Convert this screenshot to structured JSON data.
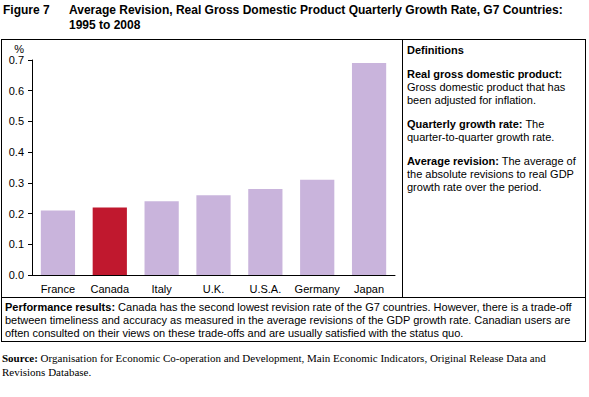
{
  "chart_data": {
    "type": "bar",
    "title": {
      "label": "Figure 7",
      "text": "Average Revision, Real Gross Domestic Product Quarterly Growth Rate, G7 Countries: 1995 to 2008"
    },
    "y_label": "%",
    "categories": [
      "France",
      "Canada",
      "Italy",
      "U.K.",
      "U.S.A.",
      "Germany",
      "Japan"
    ],
    "values": [
      0.21,
      0.22,
      0.24,
      0.26,
      0.28,
      0.31,
      0.69
    ],
    "colors": [
      "#c9b4dc",
      "#c0182e",
      "#c9b4dc",
      "#c9b4dc",
      "#c9b4dc",
      "#c9b4dc",
      "#c9b4dc"
    ],
    "ylim": [
      0,
      0.7
    ],
    "yticks": [
      {
        "value": 0,
        "label": "0.0"
      },
      {
        "value": 0.1,
        "label": "0.1"
      },
      {
        "value": 0.2,
        "label": "0.2"
      },
      {
        "value": 0.3,
        "label": "0.3"
      },
      {
        "value": 0.4,
        "label": "0.4"
      },
      {
        "value": 0.5,
        "label": "0.5"
      },
      {
        "value": 0.6,
        "label": "0.6"
      },
      {
        "value": 0.7,
        "label": "0.7"
      }
    ],
    "grid": false
  },
  "definitions": {
    "heading": "Definitions",
    "items": [
      {
        "term": "Real gross domestic product:",
        "text": "Gross domestic product that has been adjusted for inflation."
      },
      {
        "term": "Quarterly growth rate:",
        "text": "The quarter-to-quarter growth rate."
      },
      {
        "term": "Average revision:",
        "text": "The average of the absolute revisions to real GDP growth rate over the period."
      }
    ]
  },
  "performance": {
    "label": "Performance results:",
    "text": "Canada has the second lowest revision rate of the G7 countries. However, there is a trade-off between timeliness and accuracy as measured in the average revisions of the GDP growth rate. Canadian users are often consulted on their views on these trade-offs and are usually satisfied with the status quo."
  },
  "source": {
    "label": "Source:",
    "text": "Organisation for Economic Co-operation and Development, Main Economic Indicators, Original Release Data and Revisions Database."
  }
}
